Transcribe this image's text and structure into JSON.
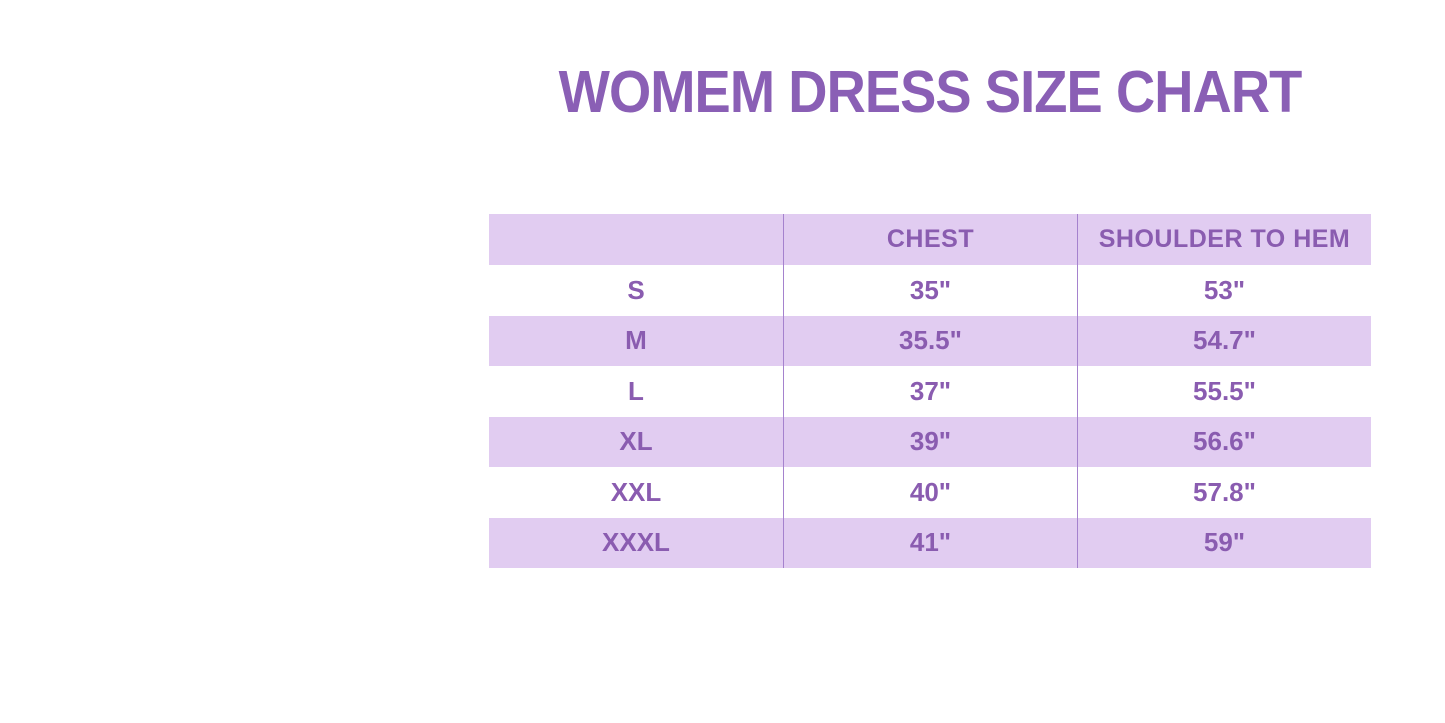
{
  "title": "WOMEM DRESS SIZE CHART",
  "colors": {
    "background": "#ffffff",
    "title": "#8a5fb5",
    "table_text": "#8a5cb0",
    "row_lavender": "#e1ccf1",
    "divider": "#a582ce"
  },
  "chart_data": {
    "type": "table",
    "title": "WOMEM DRESS SIZE CHART",
    "columns": [
      "",
      "CHEST",
      "SHOULDER TO HEM"
    ],
    "rows": [
      {
        "size": "S",
        "chest": "35\"",
        "shoulder_to_hem": "53\""
      },
      {
        "size": "M",
        "chest": "35.5\"",
        "shoulder_to_hem": "54.7\""
      },
      {
        "size": "L",
        "chest": "37\"",
        "shoulder_to_hem": "55.5\""
      },
      {
        "size": "XL",
        "chest": "39\"",
        "shoulder_to_hem": "56.6\""
      },
      {
        "size": "XXL",
        "chest": "40\"",
        "shoulder_to_hem": "57.8\""
      },
      {
        "size": "XXXL",
        "chest": "41\"",
        "shoulder_to_hem": "59\""
      }
    ],
    "layout": {
      "header_background": "lavender",
      "row_striping": "white/lavender alternating starting white",
      "column_dividers": true,
      "outer_border": false,
      "text_alignment": "center"
    }
  }
}
